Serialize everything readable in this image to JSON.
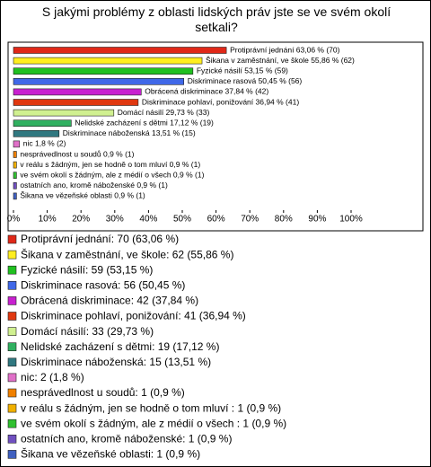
{
  "chart_data": {
    "type": "bar",
    "orientation": "horizontal",
    "title": "S jakými problémy z oblasti lidských práv jste se ve svém okolí setkali?",
    "categories": [
      "Protiprávní jednání",
      "Šikana v zaměstnání, ve škole",
      "Fyzické násilí",
      "Diskriminace rasová",
      "Obrácená diskriminace",
      "Diskriminace pohlaví, ponižování",
      "Domácí násilí",
      "Nelidské zacházení s dětmi",
      "Diskriminace náboženská",
      "nic",
      "nesprávedlnost u soudů",
      "v reálu s žádným, jen se hodně o tom mluví",
      "ve svém okolí s žádným, ale z médií o všech",
      "ostatních ano, kromě náboženské",
      "Šikana ve vězeňské oblasti"
    ],
    "values": [
      63.06,
      55.86,
      53.15,
      50.45,
      37.84,
      36.94,
      29.73,
      17.12,
      13.51,
      1.8,
      0.9,
      0.9,
      0.9,
      0.9,
      0.9
    ],
    "value_labels": [
      "Protiprávní jednání 63,06 % (70)",
      "Šikana v zaměstnání, ve škole 55,86 % (62)",
      "Fyzické násilí 53,15 % (59)",
      "Diskriminace rasová 50,45 % (56)",
      "Obrácená diskriminace 37,84 % (42)",
      "Diskriminace pohlaví, ponižování 36,94 % (41)",
      "Domácí násilí 29,73 % (33)",
      "Nelidské zacházení s dětmi 17,12 % (19)",
      "Diskriminace náboženská 13,51 % (15)",
      "nic 1,8 % (2)",
      "nesprávedlnost u soudů 0,9 % (1)",
      "v reálu s žádným, jen se hodně o tom mluví 0,9 % (1)",
      "ve svém okolí s žádným, ale z médií o všech 0,9 % (1)",
      "ostatních ano, kromě náboženské 0,9 % (1)",
      "Šikana ve vězeňské oblasti 0,9 % (1)"
    ],
    "legend": [
      "Protiprávní jednání: 70 (63,06 %)",
      "Šikana v zaměstnání, ve škole: 62 (55,86 %)",
      "Fyzické násilí: 59 (53,15 %)",
      "Diskriminace rasová: 56 (50,45 %)",
      "Obrácená diskriminace: 42 (37,84 %)",
      "Diskriminace pohlaví, ponižování: 41 (36,94 %)",
      "Domácí násilí: 33 (29,73 %)",
      "Nelidské zacházení s dětmi: 19 (17,12 %)",
      "Diskriminace náboženská: 15 (13,51 %)",
      "nic: 2 (1,8 %)",
      "nesprávedlnost u soudů: 1 (0,9 %)",
      "v reálu s žádným, jen se hodně o tom mluví : 1 (0,9 %)",
      "ve svém okolí s žádným, ale z médií o všech : 1 (0,9 %)",
      "ostatních ano, kromě náboženské: 1 (0,9 %)",
      "Šikana ve vězeňské oblasti: 1 (0,9 %)"
    ],
    "colors": [
      "#e02818",
      "#ffee20",
      "#20c020",
      "#4068e8",
      "#c820d0",
      "#e03810",
      "#d0f090",
      "#30b060",
      "#307880",
      "#e070c8",
      "#f08000",
      "#f0b000",
      "#30c030",
      "#7050c0",
      "#4060c0"
    ],
    "xlim": [
      0,
      100
    ],
    "xticks": [
      {
        "value": 0,
        "label": "0%"
      },
      {
        "value": 10,
        "label": "10%"
      },
      {
        "value": 20,
        "label": "20%"
      },
      {
        "value": 30,
        "label": "30%"
      },
      {
        "value": 40,
        "label": "40%"
      },
      {
        "value": 50,
        "label": "50%"
      },
      {
        "value": 60,
        "label": "60%"
      },
      {
        "value": 70,
        "label": "70%"
      },
      {
        "value": 80,
        "label": "80%"
      },
      {
        "value": 90,
        "label": "90%"
      },
      {
        "value": 100,
        "label": "100%"
      }
    ]
  }
}
